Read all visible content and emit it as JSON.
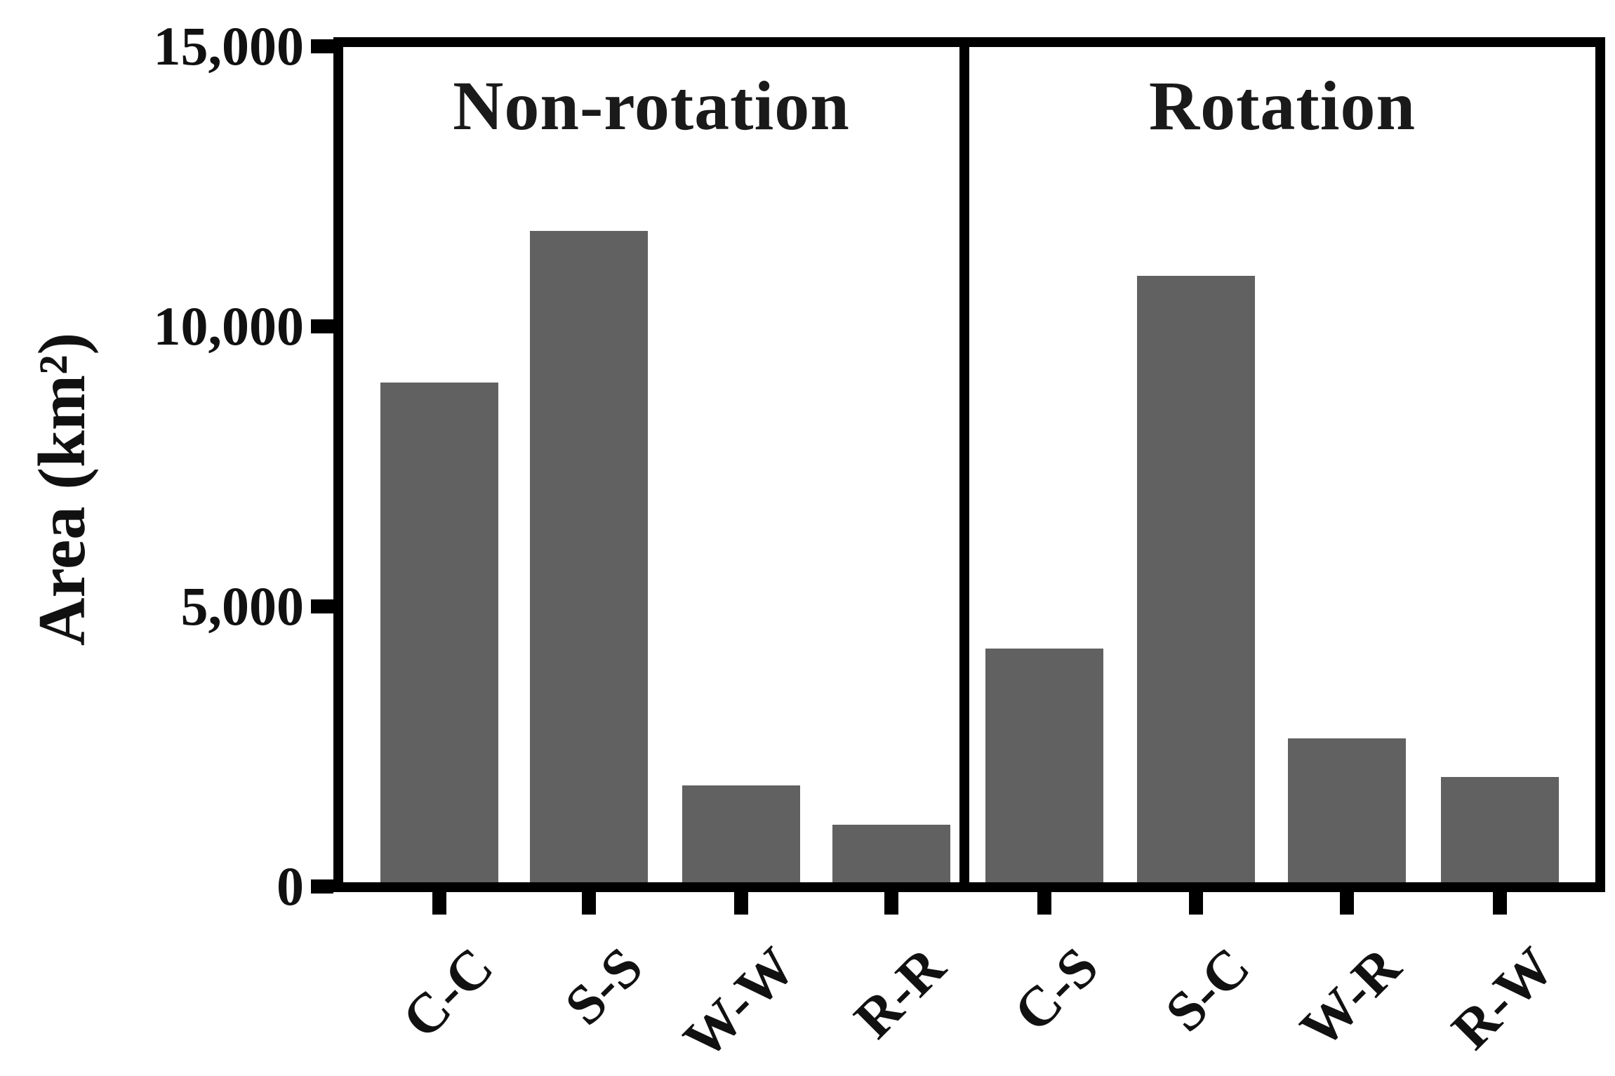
{
  "chart_data": {
    "type": "bar",
    "title": "",
    "ylabel": "Area (km²)",
    "xlabel": "",
    "ylim": [
      0,
      15000
    ],
    "grid": false,
    "legend": "none",
    "bar_color": "#616161",
    "axis_color": "#000000",
    "y_ticks": [
      {
        "value": 15000,
        "label": "15,000"
      },
      {
        "value": 10000,
        "label": "10,000"
      },
      {
        "value": 5000,
        "label": "5,000"
      },
      {
        "value": 0,
        "label": "0"
      }
    ],
    "panels": [
      {
        "title": "Non-rotation",
        "categories": [
          "C-C",
          "S-S",
          "W-W",
          "R-R"
        ],
        "values": [
          9000,
          11700,
          1800,
          1100
        ]
      },
      {
        "title": "Rotation",
        "categories": [
          "C-S",
          "S-C",
          "W-R",
          "R-W"
        ],
        "values": [
          4250,
          10900,
          2650,
          1950
        ]
      }
    ]
  }
}
